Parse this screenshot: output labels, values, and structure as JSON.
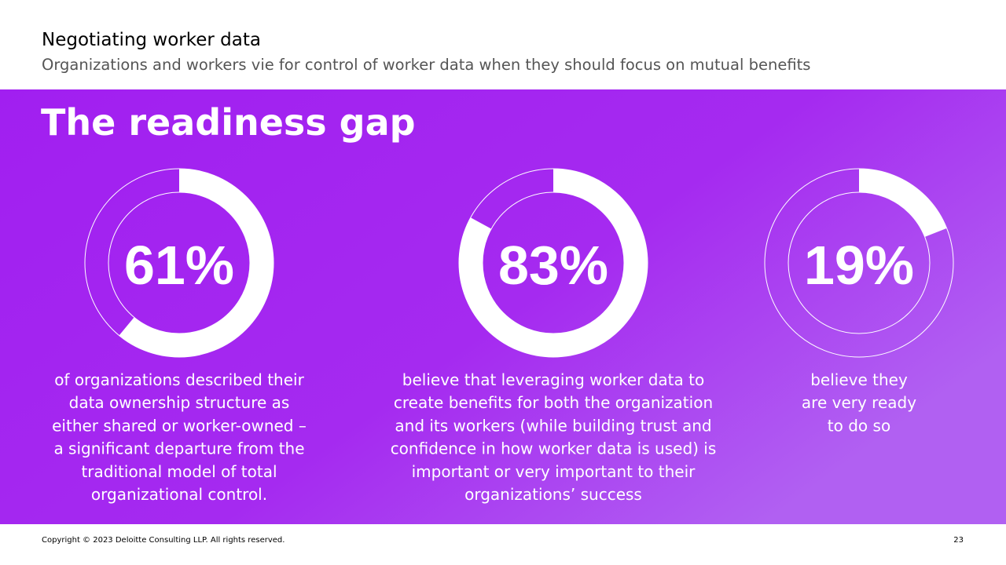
{
  "header": {
    "title": "Negotiating worker data",
    "subtitle": "Organizations and workers vie for control of worker data when they should focus on mutual benefits"
  },
  "heading": "The readiness gap",
  "stats": [
    {
      "value": 61,
      "value_label": "61%",
      "lines": [
        "of organizations described their",
        "data ownership structure as",
        "either shared or worker-owned –",
        "a significant departure from the",
        "traditional model of total",
        "organizational control."
      ]
    },
    {
      "value": 83,
      "value_label": "83%",
      "lines": [
        "believe that leveraging worker data to",
        "create benefits for both the organization",
        "and its workers (while building trust and",
        "confidence in how worker data is used) is",
        "important or very important to their",
        "organizations’ success"
      ]
    },
    {
      "value": 19,
      "value_label": "19%",
      "lines": [
        "believe they",
        "are very ready",
        "to do so"
      ]
    }
  ],
  "footer": {
    "copyright": "Copyright © 2023 Deloitte Consulting LLP. All rights reserved.",
    "page": "23"
  }
}
